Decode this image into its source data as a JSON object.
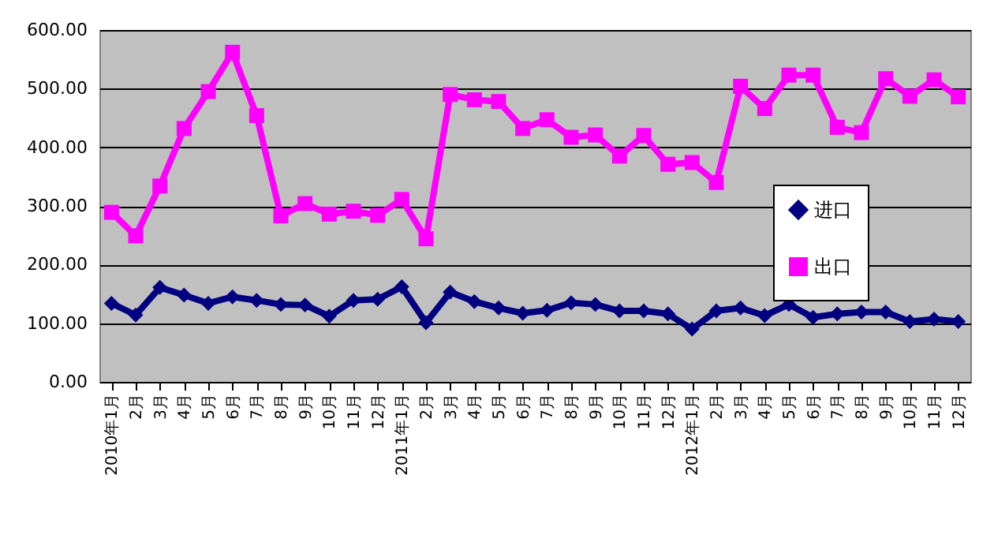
{
  "chart_data": {
    "type": "line",
    "categories": [
      "2010年1月",
      "2月",
      "3月",
      "4月",
      "5月",
      "6月",
      "7月",
      "8月",
      "9月",
      "10月",
      "11月",
      "12月",
      "2011年1月",
      "2月",
      "3月",
      "4月",
      "5月",
      "6月",
      "7月",
      "8月",
      "9月",
      "10月",
      "11月",
      "12月",
      "2012年1月",
      "2月",
      "3月",
      "4月",
      "5月",
      "6月",
      "7月",
      "8月",
      "9月",
      "10月",
      "11月",
      "12月"
    ],
    "series": [
      {
        "name": "进口",
        "color": "#000080",
        "marker": "diamond",
        "values": [
          134,
          114,
          161,
          148,
          134,
          145,
          139,
          132,
          131,
          112,
          139,
          141,
          162,
          101,
          153,
          137,
          126,
          117,
          122,
          135,
          132,
          121,
          121,
          116,
          90,
          121,
          126,
          113,
          132,
          110,
          116,
          119,
          119,
          103,
          107,
          103
        ]
      },
      {
        "name": "出口",
        "color": "#ff00ff",
        "marker": "square",
        "values": [
          289,
          249,
          334,
          432,
          495,
          562,
          454,
          283,
          304,
          286,
          291,
          284,
          311,
          244,
          490,
          481,
          478,
          432,
          447,
          417,
          421,
          385,
          420,
          371,
          374,
          340,
          504,
          466,
          523,
          523,
          434,
          425,
          517,
          487,
          515,
          486
        ]
      }
    ],
    "ylim": [
      0,
      600
    ],
    "yticks": [
      {
        "value": 0,
        "label": "0.00"
      },
      {
        "value": 100,
        "label": "100.00"
      },
      {
        "value": 200,
        "label": "200.00"
      },
      {
        "value": 300,
        "label": "300.00"
      },
      {
        "value": 400,
        "label": "400.00"
      },
      {
        "value": 500,
        "label": "500.00"
      },
      {
        "value": 600,
        "label": "600.00"
      }
    ],
    "grid": "y",
    "legend": "right",
    "line_style": "solid"
  }
}
